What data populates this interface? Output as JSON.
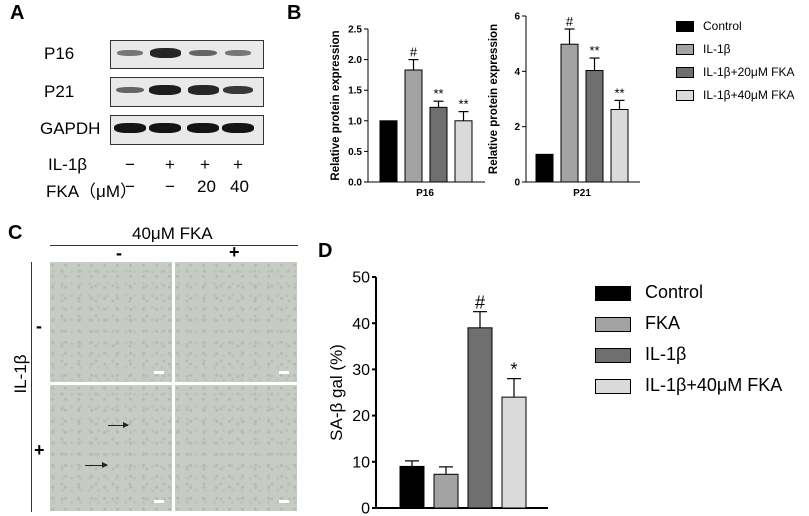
{
  "panel_labels": {
    "a": "A",
    "b": "B",
    "c": "C",
    "d": "D"
  },
  "panel_a": {
    "rows": [
      "P16",
      "P21",
      "GAPDH"
    ],
    "band_intensity": [
      [
        0.45,
        0.9,
        0.55,
        0.45
      ],
      [
        0.55,
        0.95,
        0.9,
        0.8
      ],
      [
        1.0,
        1.0,
        1.0,
        1.0
      ]
    ],
    "treatments": [
      {
        "label": "IL-1β",
        "values": [
          "−",
          "+",
          "+",
          "+"
        ]
      },
      {
        "label": "FKA（μM）",
        "values": [
          "−",
          "−",
          "20",
          "40"
        ]
      }
    ]
  },
  "panel_c": {
    "top_header": "40μM FKA",
    "col_labels": [
      "-",
      "+"
    ],
    "side_header": "IL-1β",
    "row_labels": [
      "-",
      "+"
    ]
  },
  "chart_data": [
    {
      "type": "bar",
      "title": "",
      "xlabel": "",
      "ylabel": "Relative protein expression",
      "categories": [
        "P16"
      ],
      "series": [
        {
          "name": "Control",
          "values": [
            1.0
          ],
          "errors": [
            0
          ],
          "annotations": [
            ""
          ]
        },
        {
          "name": "IL-1β",
          "values": [
            1.83
          ],
          "errors": [
            0.17
          ],
          "annotations": [
            "#"
          ]
        },
        {
          "name": "IL-1β+20μM FKA",
          "values": [
            1.22
          ],
          "errors": [
            0.1
          ],
          "annotations": [
            "**"
          ]
        },
        {
          "name": "IL-1β+40μM FKA",
          "values": [
            1.0
          ],
          "errors": [
            0.15
          ],
          "annotations": [
            "**"
          ]
        }
      ],
      "ylim": [
        0,
        2.5
      ],
      "yticks": [
        "0.0",
        "0.5",
        "1.0",
        "1.5",
        "2.0",
        "2.5"
      ],
      "colors": [
        "#000000",
        "#a3a3a3",
        "#6f6f6f",
        "#dadada"
      ]
    },
    {
      "type": "bar",
      "title": "",
      "xlabel": "",
      "ylabel": "Relative protein expression",
      "categories": [
        "P21"
      ],
      "series": [
        {
          "name": "Control",
          "values": [
            1.0
          ],
          "errors": [
            0
          ],
          "annotations": [
            ""
          ]
        },
        {
          "name": "IL-1β",
          "values": [
            4.98
          ],
          "errors": [
            0.55
          ],
          "annotations": [
            "#"
          ]
        },
        {
          "name": "IL-1β+20μM FKA",
          "values": [
            4.03
          ],
          "errors": [
            0.45
          ],
          "annotations": [
            "**"
          ]
        },
        {
          "name": "IL-1β+40μM FKA",
          "values": [
            2.62
          ],
          "errors": [
            0.33
          ],
          "annotations": [
            "**"
          ]
        }
      ],
      "ylim": [
        0,
        6
      ],
      "yticks": [
        "0",
        "2",
        "4",
        "6"
      ],
      "colors": [
        "#000000",
        "#a3a3a3",
        "#6f6f6f",
        "#dadada"
      ]
    },
    {
      "type": "bar",
      "title": "",
      "xlabel": "",
      "ylabel": "SA-β gal (%)",
      "categories": [
        ""
      ],
      "series": [
        {
          "name": "Control",
          "values": [
            9.0
          ],
          "errors": [
            1.2
          ],
          "annotations": [
            ""
          ]
        },
        {
          "name": "FKA",
          "values": [
            7.3
          ],
          "errors": [
            1.6
          ],
          "annotations": [
            ""
          ]
        },
        {
          "name": "IL-1β",
          "values": [
            39.0
          ],
          "errors": [
            3.5
          ],
          "annotations": [
            "#"
          ]
        },
        {
          "name": "IL-1β+40μM FKA",
          "values": [
            24.0
          ],
          "errors": [
            4.0
          ],
          "annotations": [
            "*"
          ]
        }
      ],
      "ylim": [
        0,
        50
      ],
      "yticks": [
        "0",
        "10",
        "20",
        "30",
        "40",
        "50"
      ],
      "colors": [
        "#000000",
        "#a3a3a3",
        "#6f6f6f",
        "#dadada"
      ]
    }
  ]
}
